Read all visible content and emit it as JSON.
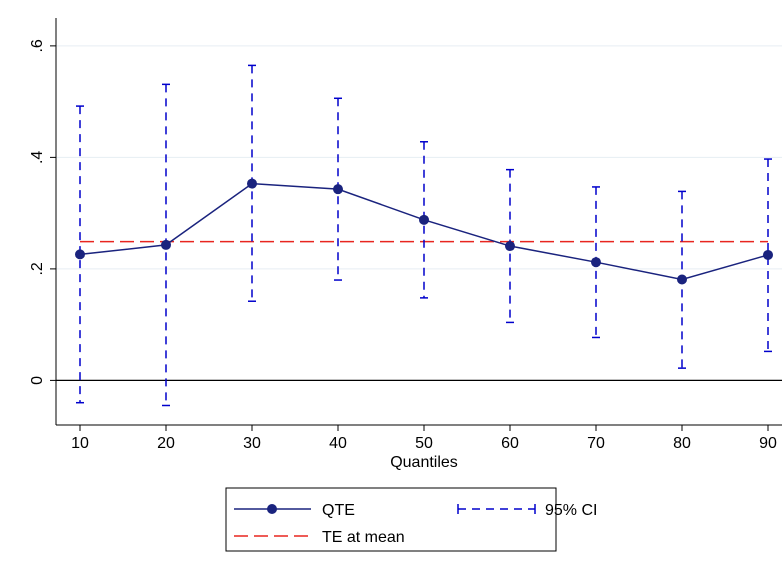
{
  "chart_data": {
    "type": "line",
    "title": "",
    "xlabel": "Quantiles",
    "ylabel": "",
    "x": [
      10,
      20,
      30,
      40,
      50,
      60,
      70,
      80,
      90
    ],
    "xlim": [
      10,
      90
    ],
    "ylim": [
      -0.08,
      0.65
    ],
    "x_ticks": [
      {
        "value": 10,
        "label": "10"
      },
      {
        "value": 20,
        "label": "20"
      },
      {
        "value": 30,
        "label": "30"
      },
      {
        "value": 40,
        "label": "40"
      },
      {
        "value": 50,
        "label": "50"
      },
      {
        "value": 60,
        "label": "60"
      },
      {
        "value": 70,
        "label": "70"
      },
      {
        "value": 80,
        "label": "80"
      },
      {
        "value": 90,
        "label": "90"
      }
    ],
    "y_ticks": [
      {
        "value": 0,
        "label": "0"
      },
      {
        "value": 0.2,
        "label": ".2"
      },
      {
        "value": 0.4,
        "label": ".4"
      },
      {
        "value": 0.6,
        "label": ".6"
      }
    ],
    "grid": true,
    "zero_line": true,
    "series": [
      {
        "name": "QTE",
        "kind": "line-marker",
        "color": "#1a237e",
        "values": [
          0.226,
          0.243,
          0.353,
          0.343,
          0.288,
          0.241,
          0.212,
          0.181,
          0.225
        ]
      },
      {
        "name": "95% CI",
        "kind": "error-bars",
        "color": "#0000cc",
        "lower": [
          -0.04,
          -0.045,
          0.142,
          0.18,
          0.148,
          0.104,
          0.077,
          0.022,
          0.052
        ],
        "upper": [
          0.492,
          0.531,
          0.565,
          0.506,
          0.428,
          0.378,
          0.347,
          0.339,
          0.397
        ]
      },
      {
        "name": "TE at mean",
        "kind": "hline",
        "color": "#e8251f",
        "value": 0.249
      }
    ],
    "legend": {
      "placement": "bottom",
      "items": [
        {
          "label": "QTE",
          "series": "QTE"
        },
        {
          "label": "95% CI",
          "series": "95% CI"
        },
        {
          "label": "TE at mean",
          "series": "TE at mean"
        }
      ]
    }
  }
}
